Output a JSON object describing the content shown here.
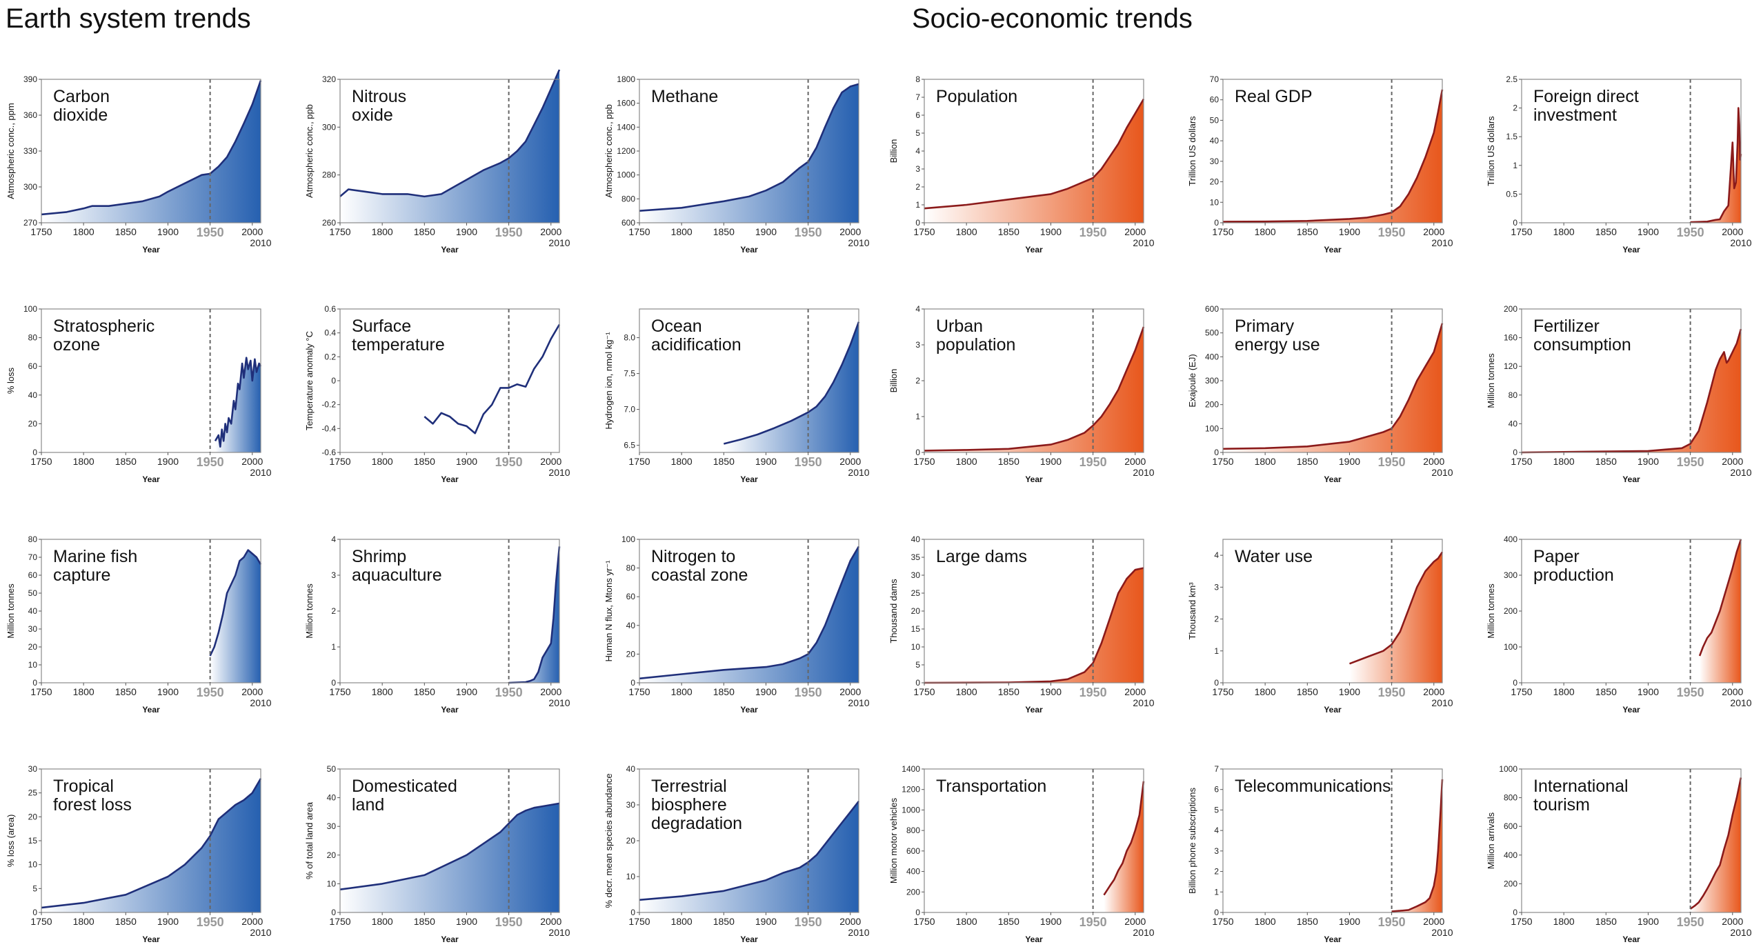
{
  "sections": {
    "earth": {
      "title": "Earth system trends",
      "colors": {
        "line": "#1f2f7a",
        "fill_dark": "#2660b0",
        "fill_light": "#ffffff"
      }
    },
    "socio": {
      "title": "Socio-economic trends",
      "colors": {
        "line": "#8b1a1a",
        "fill_dark": "#e8571c",
        "fill_light": "#ffffff"
      }
    }
  },
  "axis": {
    "xlabel": "Year",
    "x_ticks": [
      "1750",
      "1800",
      "1850",
      "1900",
      "1950",
      "2000"
    ],
    "x_end": "2010",
    "divider_year": 1950
  },
  "chart_data": [
    {
      "type": "area",
      "section": "earth",
      "title_lines": [
        "Carbon",
        "dioxide"
      ],
      "ylabel": "Atmospheric conc., ppm",
      "ylim": [
        270,
        390
      ],
      "yticks": [
        270,
        300,
        330,
        360,
        390
      ],
      "x": [
        1750,
        1780,
        1800,
        1810,
        1830,
        1850,
        1870,
        1890,
        1900,
        1920,
        1940,
        1950,
        1960,
        1970,
        1980,
        1990,
        2000,
        2010
      ],
      "y": [
        277,
        279,
        282,
        284,
        284,
        286,
        288,
        292,
        296,
        303,
        310,
        311,
        317,
        325,
        338,
        353,
        369,
        389
      ]
    },
    {
      "type": "area",
      "section": "earth",
      "title_lines": [
        "Nitrous",
        "oxide"
      ],
      "ylabel": "Atmospheric conc., ppb",
      "ylim": [
        260,
        320
      ],
      "yticks": [
        260,
        280,
        300,
        320
      ],
      "x": [
        1750,
        1760,
        1780,
        1800,
        1830,
        1850,
        1870,
        1890,
        1900,
        1920,
        1940,
        1950,
        1960,
        1970,
        1980,
        1990,
        2000,
        2010
      ],
      "y": [
        271,
        274,
        273,
        272,
        272,
        271,
        272,
        276,
        278,
        282,
        285,
        287,
        290,
        294,
        301,
        308,
        316,
        324
      ]
    },
    {
      "type": "area",
      "section": "earth",
      "title_lines": [
        "Methane"
      ],
      "ylabel": "Atmospheric conc., ppb",
      "ylim": [
        600,
        1800
      ],
      "yticks": [
        600,
        800,
        1000,
        1200,
        1400,
        1600,
        1800
      ],
      "x": [
        1750,
        1780,
        1800,
        1850,
        1880,
        1900,
        1920,
        1940,
        1950,
        1960,
        1970,
        1980,
        1990,
        2000,
        2010
      ],
      "y": [
        700,
        715,
        725,
        780,
        820,
        870,
        940,
        1060,
        1110,
        1230,
        1400,
        1560,
        1690,
        1740,
        1760
      ]
    },
    {
      "type": "area",
      "section": "socio",
      "title_lines": [
        "Population"
      ],
      "ylabel": "Billion",
      "ylim": [
        0,
        8
      ],
      "yticks": [
        0,
        1,
        2,
        3,
        4,
        5,
        6,
        7,
        8
      ],
      "x": [
        1750,
        1800,
        1850,
        1900,
        1920,
        1940,
        1950,
        1960,
        1970,
        1980,
        1990,
        2000,
        2010
      ],
      "y": [
        0.8,
        1.0,
        1.3,
        1.6,
        1.9,
        2.3,
        2.5,
        3.0,
        3.7,
        4.4,
        5.3,
        6.1,
        6.9
      ]
    },
    {
      "type": "area",
      "section": "socio",
      "title_lines": [
        "Real GDP"
      ],
      "ylabel": "Trillion US dollars",
      "ylim": [
        0,
        70
      ],
      "yticks": [
        0,
        10,
        20,
        30,
        40,
        50,
        60,
        70
      ],
      "x": [
        1750,
        1800,
        1850,
        1900,
        1920,
        1940,
        1950,
        1960,
        1970,
        1980,
        1990,
        2000,
        2005,
        2010
      ],
      "y": [
        0.5,
        0.6,
        0.9,
        1.9,
        2.5,
        4,
        5,
        8,
        14,
        22,
        32,
        44,
        54,
        65
      ]
    },
    {
      "type": "area",
      "section": "socio",
      "title_lines": [
        "Foreign direct",
        "investment"
      ],
      "ylabel": "Trillion US dollars",
      "ylim": [
        0,
        2.5
      ],
      "yticks": [
        "0",
        "0.5",
        "1",
        "1.5",
        "2",
        "2.5"
      ],
      "x": [
        1950,
        1970,
        1980,
        1985,
        1990,
        1995,
        2000,
        2002,
        2004,
        2006,
        2007,
        2008,
        2009,
        2010
      ],
      "y": [
        0.01,
        0.02,
        0.05,
        0.06,
        0.2,
        0.3,
        1.4,
        0.6,
        0.7,
        1.4,
        2.0,
        1.7,
        1.1,
        1.2
      ]
    },
    {
      "type": "area",
      "section": "earth",
      "title_lines": [
        "Stratospheric",
        "ozone"
      ],
      "ylabel": "% loss",
      "ylim": [
        0,
        100
      ],
      "yticks": [
        0,
        20,
        40,
        60,
        80,
        100
      ],
      "x": [
        1956,
        1960,
        1962,
        1964,
        1966,
        1968,
        1970,
        1972,
        1975,
        1978,
        1980,
        1983,
        1985,
        1988,
        1990,
        1993,
        1995,
        1998,
        2000,
        2003,
        2005,
        2008,
        2010
      ],
      "y": [
        8,
        12,
        4,
        16,
        8,
        20,
        14,
        24,
        20,
        36,
        30,
        48,
        44,
        62,
        52,
        66,
        58,
        64,
        50,
        65,
        56,
        62,
        60
      ]
    },
    {
      "type": "line",
      "section": "earth",
      "title_lines": [
        "Surface",
        "temperature"
      ],
      "ylabel": "Temperature anomaly °C",
      "ylim": [
        -0.6,
        0.6
      ],
      "yticks": [
        "-0.6",
        "-0.4",
        "-0.2",
        "0",
        "0.2",
        "0.4",
        "0.6"
      ],
      "x": [
        1850,
        1860,
        1870,
        1880,
        1890,
        1900,
        1910,
        1920,
        1930,
        1940,
        1950,
        1960,
        1970,
        1980,
        1990,
        2000,
        2010
      ],
      "y": [
        -0.3,
        -0.36,
        -0.27,
        -0.3,
        -0.36,
        -0.38,
        -0.44,
        -0.28,
        -0.2,
        -0.06,
        -0.06,
        -0.03,
        -0.05,
        0.1,
        0.2,
        0.35,
        0.47
      ]
    },
    {
      "type": "area",
      "section": "earth",
      "title_lines": [
        "Ocean",
        "acidification"
      ],
      "ylabel": "Hydrogen ion, nmol kg⁻¹",
      "ylim": [
        6.4,
        8.4
      ],
      "yticks": [
        "6.5",
        "7.0",
        "7.5",
        "8.0"
      ],
      "x": [
        1850,
        1870,
        1890,
        1910,
        1930,
        1950,
        1960,
        1970,
        1980,
        1990,
        2000,
        2010
      ],
      "y": [
        6.52,
        6.58,
        6.65,
        6.74,
        6.84,
        6.96,
        7.04,
        7.18,
        7.38,
        7.62,
        7.9,
        8.22
      ]
    },
    {
      "type": "area",
      "section": "socio",
      "title_lines": [
        "Urban",
        "population"
      ],
      "ylabel": "Billion",
      "ylim": [
        0,
        4
      ],
      "yticks": [
        0,
        1,
        2,
        3,
        4
      ],
      "x": [
        1750,
        1800,
        1850,
        1900,
        1920,
        1940,
        1950,
        1960,
        1970,
        1980,
        1990,
        2000,
        2010
      ],
      "y": [
        0.05,
        0.07,
        0.1,
        0.22,
        0.35,
        0.55,
        0.75,
        1.0,
        1.35,
        1.75,
        2.3,
        2.85,
        3.5
      ]
    },
    {
      "type": "area",
      "section": "socio",
      "title_lines": [
        "Primary",
        "energy use"
      ],
      "ylabel": "Exajoule (EJ)",
      "ylim": [
        0,
        600
      ],
      "yticks": [
        0,
        100,
        200,
        300,
        400,
        500,
        600
      ],
      "x": [
        1750,
        1800,
        1850,
        1900,
        1920,
        1940,
        1950,
        1960,
        1970,
        1980,
        1990,
        2000,
        2010
      ],
      "y": [
        15,
        18,
        25,
        45,
        65,
        85,
        100,
        150,
        220,
        300,
        360,
        420,
        540
      ]
    },
    {
      "type": "area",
      "section": "socio",
      "title_lines": [
        "Fertilizer",
        "consumption"
      ],
      "ylabel": "Million tonnes",
      "ylim": [
        0,
        200
      ],
      "yticks": [
        0,
        40,
        80,
        120,
        160,
        200
      ],
      "x": [
        1750,
        1900,
        1920,
        1940,
        1950,
        1960,
        1970,
        1980,
        1985,
        1990,
        1993,
        1995,
        2000,
        2005,
        2010
      ],
      "y": [
        0,
        2,
        4,
        6,
        12,
        30,
        70,
        115,
        130,
        140,
        125,
        128,
        140,
        152,
        172
      ]
    },
    {
      "type": "area",
      "section": "earth",
      "title_lines": [
        "Marine fish",
        "capture"
      ],
      "ylabel": "Million tonnes",
      "ylim": [
        0,
        80
      ],
      "yticks": [
        0,
        10,
        20,
        30,
        40,
        50,
        60,
        70,
        80
      ],
      "x": [
        1950,
        1955,
        1960,
        1965,
        1970,
        1975,
        1980,
        1985,
        1990,
        1995,
        2000,
        2005,
        2010
      ],
      "y": [
        15,
        20,
        28,
        38,
        50,
        55,
        60,
        68,
        70,
        74,
        72,
        70,
        66
      ]
    },
    {
      "type": "area",
      "section": "earth",
      "title_lines": [
        "Shrimp",
        "aquaculture"
      ],
      "ylabel": "Million tonnes",
      "ylim": [
        0,
        4
      ],
      "yticks": [
        0,
        1,
        2,
        3,
        4
      ],
      "x": [
        1950,
        1960,
        1970,
        1975,
        1980,
        1985,
        1990,
        1995,
        2000,
        2003,
        2006,
        2010
      ],
      "y": [
        0,
        0.01,
        0.02,
        0.05,
        0.1,
        0.3,
        0.7,
        0.9,
        1.1,
        1.8,
        2.8,
        3.8
      ]
    },
    {
      "type": "area",
      "section": "earth",
      "title_lines": [
        "Nitrogen to",
        "coastal zone"
      ],
      "ylabel": "Human N flux, Mtons yr⁻¹",
      "ylim": [
        0,
        100
      ],
      "yticks": [
        0,
        20,
        40,
        60,
        80,
        100
      ],
      "x": [
        1750,
        1800,
        1850,
        1900,
        1920,
        1940,
        1950,
        1960,
        1970,
        1980,
        1990,
        2000,
        2010
      ],
      "y": [
        3,
        6,
        9,
        11,
        13,
        17,
        20,
        28,
        40,
        55,
        70,
        85,
        95
      ]
    },
    {
      "type": "area",
      "section": "socio",
      "title_lines": [
        "Large dams"
      ],
      "ylabel": "Thousand dams",
      "ylim": [
        0,
        40
      ],
      "yticks": [
        0,
        5,
        10,
        15,
        20,
        25,
        30,
        35,
        40
      ],
      "x": [
        1750,
        1850,
        1900,
        1920,
        1940,
        1950,
        1960,
        1970,
        1980,
        1990,
        2000,
        2010
      ],
      "y": [
        0,
        0.1,
        0.4,
        1,
        3,
        5.5,
        11,
        18,
        25,
        29,
        31.5,
        32
      ]
    },
    {
      "type": "area",
      "section": "socio",
      "title_lines": [
        "Water use"
      ],
      "ylabel": "Thousand km³",
      "ylim": [
        0,
        4.5
      ],
      "yticks": [
        0,
        1,
        2,
        3,
        4
      ],
      "x": [
        1900,
        1920,
        1940,
        1950,
        1960,
        1970,
        1980,
        1990,
        2000,
        2005,
        2010
      ],
      "y": [
        0.6,
        0.8,
        1.0,
        1.2,
        1.6,
        2.3,
        3.0,
        3.5,
        3.8,
        3.9,
        4.1
      ]
    },
    {
      "type": "area",
      "section": "socio",
      "title_lines": [
        "Paper",
        "production"
      ],
      "ylabel": "Million tonnes",
      "ylim": [
        0,
        400
      ],
      "yticks": [
        0,
        100,
        200,
        300,
        400
      ],
      "x": [
        1961,
        1965,
        1970,
        1975,
        1980,
        1985,
        1990,
        1995,
        2000,
        2005,
        2010
      ],
      "y": [
        75,
        100,
        125,
        140,
        170,
        200,
        240,
        280,
        320,
        365,
        400
      ]
    },
    {
      "type": "area",
      "section": "earth",
      "title_lines": [
        "Tropical",
        "forest loss"
      ],
      "ylabel": "% loss (area)",
      "ylim": [
        0,
        30
      ],
      "yticks": [
        0,
        5,
        10,
        15,
        20,
        25,
        30
      ],
      "x": [
        1750,
        1800,
        1850,
        1900,
        1920,
        1940,
        1950,
        1960,
        1970,
        1980,
        1990,
        2000,
        2010
      ],
      "y": [
        1,
        2,
        3.7,
        7.5,
        10,
        13.5,
        16,
        19.5,
        21,
        22.5,
        23.5,
        25,
        28
      ]
    },
    {
      "type": "area",
      "section": "earth",
      "title_lines": [
        "Domesticated",
        "land"
      ],
      "ylabel": "% of total land area",
      "ylim": [
        0,
        50
      ],
      "yticks": [
        0,
        10,
        20,
        30,
        40,
        50
      ],
      "x": [
        1750,
        1800,
        1850,
        1900,
        1920,
        1940,
        1950,
        1960,
        1970,
        1980,
        1990,
        2000,
        2010
      ],
      "y": [
        8,
        10,
        13,
        20,
        24,
        28,
        31,
        34,
        35.5,
        36.5,
        37,
        37.5,
        38
      ]
    },
    {
      "type": "area",
      "section": "earth",
      "title_lines": [
        "Terrestrial",
        "biosphere",
        "degradation"
      ],
      "ylabel": "% decr. mean species abundance",
      "ylim": [
        0,
        40
      ],
      "yticks": [
        0,
        10,
        20,
        30,
        40
      ],
      "x": [
        1750,
        1800,
        1850,
        1900,
        1920,
        1940,
        1950,
        1960,
        1970,
        1980,
        1990,
        2000,
        2010
      ],
      "y": [
        3.5,
        4.5,
        6,
        9,
        11,
        12.5,
        14,
        16,
        19,
        22,
        25,
        28,
        31
      ]
    },
    {
      "type": "area",
      "section": "socio",
      "title_lines": [
        "Transportation"
      ],
      "ylabel": "Million motor vehicles",
      "ylim": [
        0,
        1400
      ],
      "yticks": [
        0,
        200,
        400,
        600,
        800,
        1000,
        1200,
        1400
      ],
      "x": [
        1963,
        1970,
        1975,
        1980,
        1985,
        1990,
        1995,
        2000,
        2005,
        2010
      ],
      "y": [
        170,
        260,
        320,
        410,
        480,
        600,
        680,
        800,
        950,
        1280
      ]
    },
    {
      "type": "area",
      "section": "socio",
      "title_lines": [
        "Telecommunications"
      ],
      "ylabel": "Billion phone subscriptions",
      "ylim": [
        0,
        7
      ],
      "yticks": [
        0,
        1,
        2,
        3,
        4,
        5,
        6,
        7
      ],
      "x": [
        1950,
        1960,
        1970,
        1980,
        1990,
        1995,
        2000,
        2003,
        2005,
        2008,
        2010
      ],
      "y": [
        0.05,
        0.08,
        0.12,
        0.3,
        0.5,
        0.7,
        1.3,
        2.0,
        3.0,
        5.0,
        6.5
      ]
    },
    {
      "type": "area",
      "section": "socio",
      "title_lines": [
        "International",
        "tourism"
      ],
      "ylabel": "Million arrivals",
      "ylim": [
        0,
        1000
      ],
      "yticks": [
        0,
        200,
        400,
        600,
        800,
        1000
      ],
      "x": [
        1950,
        1955,
        1960,
        1965,
        1970,
        1975,
        1980,
        1985,
        1990,
        1995,
        2000,
        2005,
        2010
      ],
      "y": [
        25,
        45,
        70,
        115,
        165,
        220,
        280,
        330,
        440,
        540,
        680,
        800,
        940
      ]
    }
  ]
}
